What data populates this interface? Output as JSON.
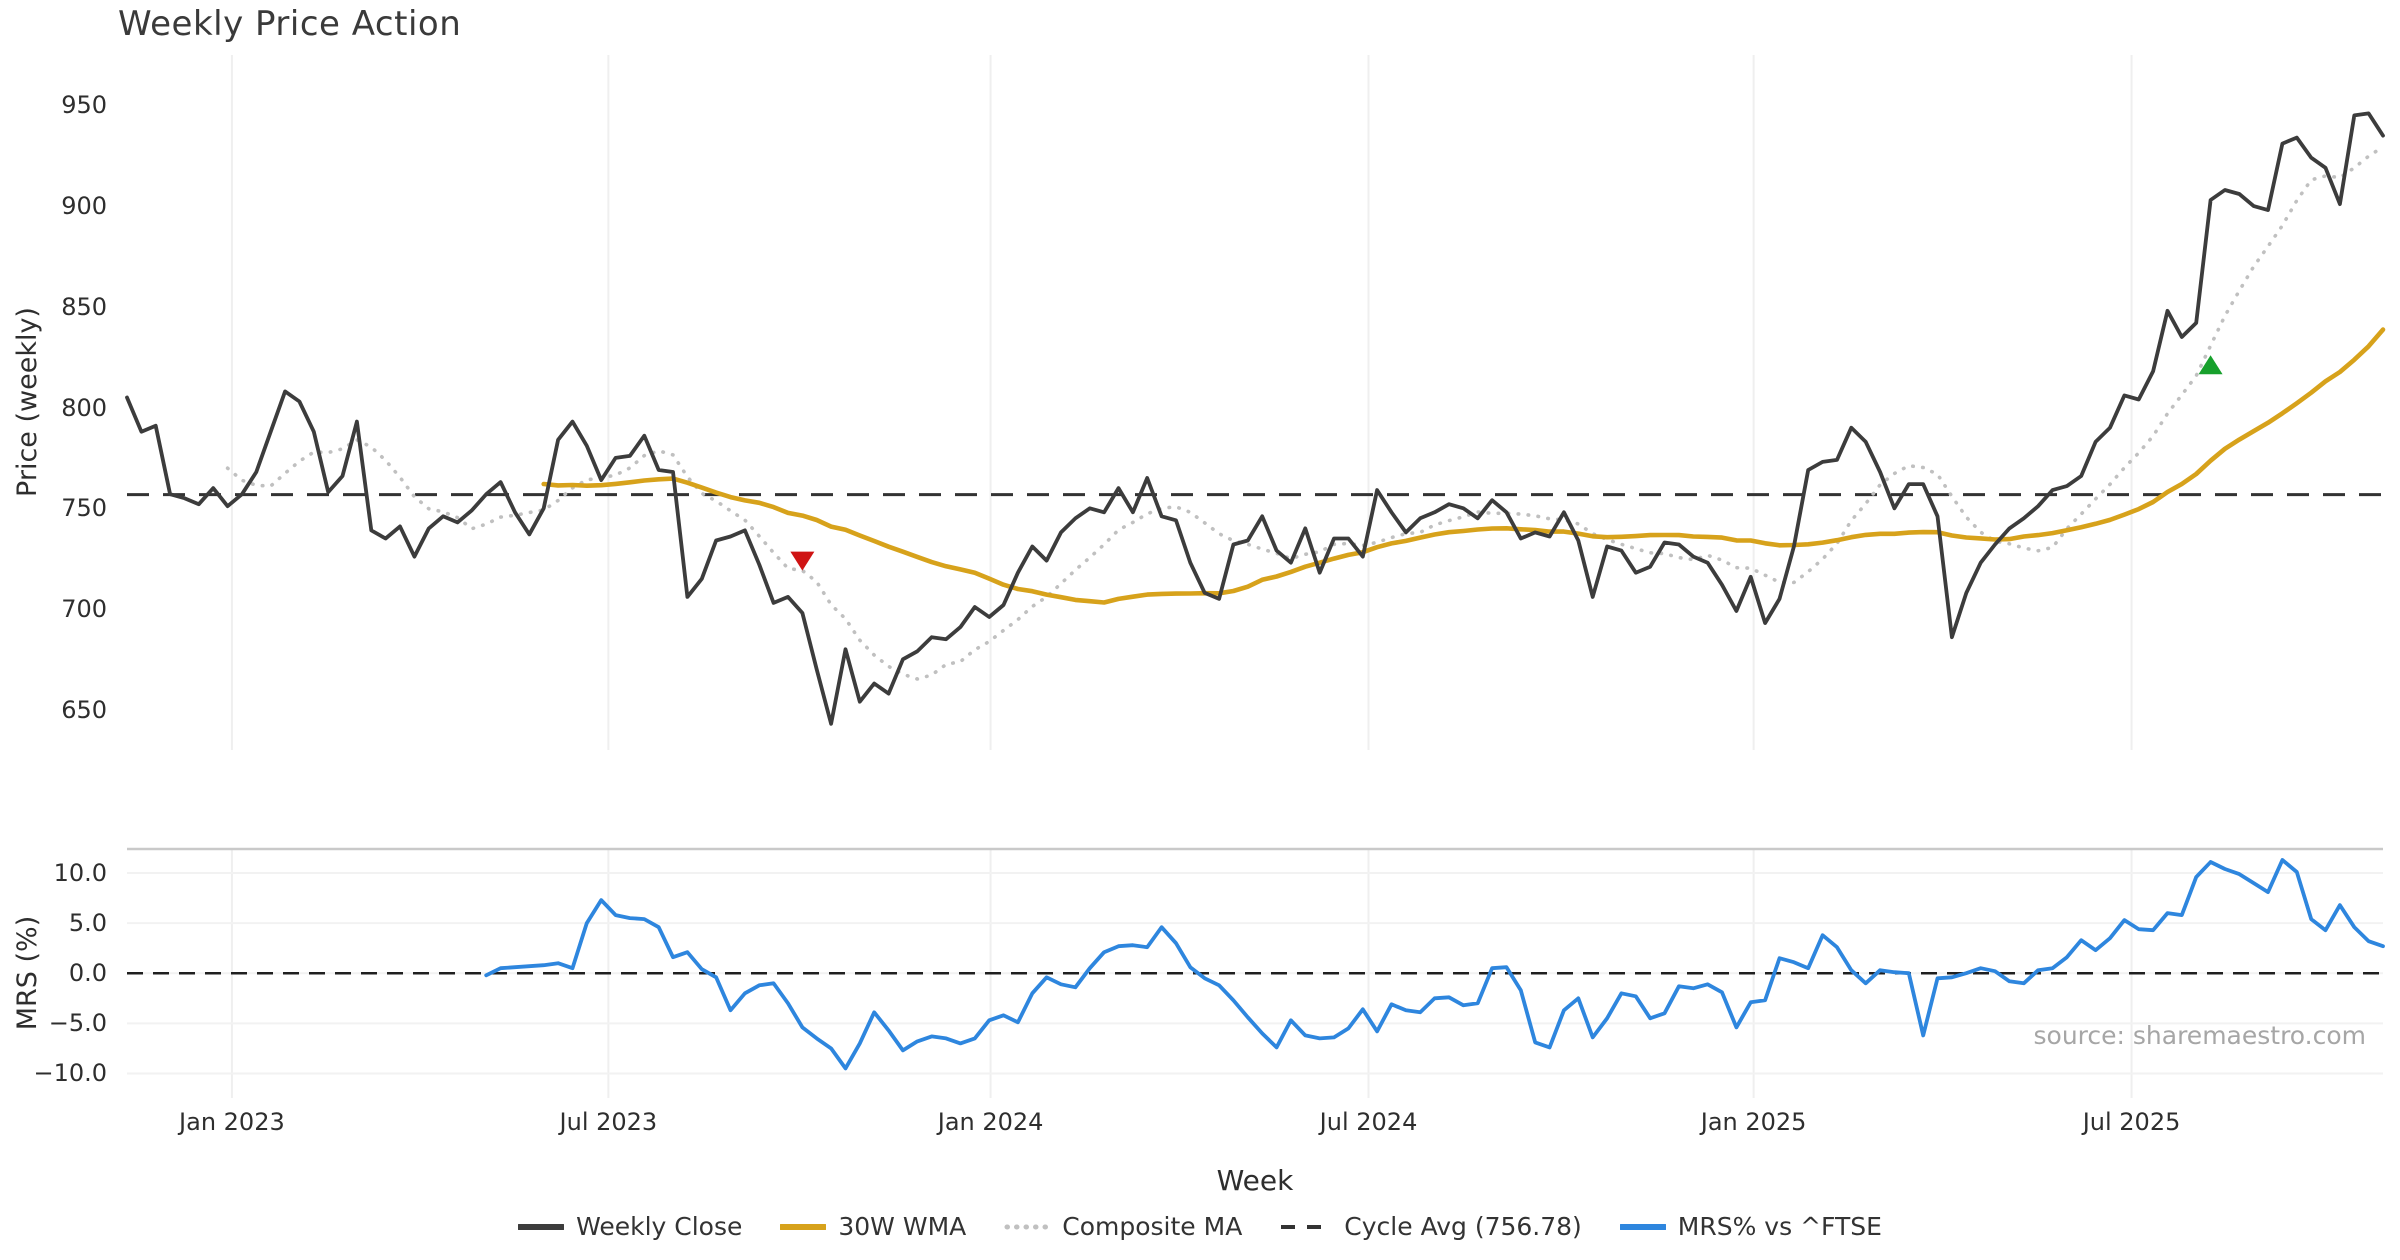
{
  "title": "Weekly Price Action",
  "source_text": "source: sharemaestro.com",
  "x_axis": {
    "label": "Week",
    "n_weeks": 157,
    "ticks": [
      {
        "label": "Jan 2023",
        "week": 7.3
      },
      {
        "label": "Jul 2023",
        "week": 33.5
      },
      {
        "label": "Jan 2024",
        "week": 60.1
      },
      {
        "label": "Jul 2024",
        "week": 86.4
      },
      {
        "label": "Jan 2025",
        "week": 113.2
      },
      {
        "label": "Jul 2025",
        "week": 139.5
      }
    ]
  },
  "legend": {
    "items": [
      {
        "label": "Weekly Close",
        "key": "close"
      },
      {
        "label": "30W WMA",
        "key": "wma"
      },
      {
        "label": "Composite MA",
        "key": "composite"
      },
      {
        "label": "Cycle Avg (756.78)",
        "key": "cycle"
      },
      {
        "label": "MRS% vs ^FTSE",
        "key": "mrs"
      }
    ]
  },
  "colors": {
    "close": "#3c3c3c",
    "wma": "#d7a21b",
    "composite": "#c0c0c0",
    "cycle": "#333333",
    "mrs": "#2e86de",
    "buy_marker": "#17a02c",
    "sell_marker": "#cf1414",
    "grid": "#efefef",
    "hgrid": "#f2f2f2",
    "spine": "#c9c9c9",
    "zero_line": "#1f1f1f",
    "tick_text": "#2e2e2e",
    "title_text": "#3a3a3a",
    "source_text": "#a6a6a6"
  },
  "chart_data": {
    "type": "line",
    "x_unit": "weekly index (Nov 2022 - Nov 2025)",
    "panels": [
      {
        "name": "price",
        "ylabel": "Price (weekly)",
        "ylim": [
          630,
          975
        ],
        "yticks": [
          950,
          900,
          850,
          800,
          750,
          700,
          650
        ],
        "cycle_avg": 756.78,
        "series": [
          {
            "name": "Weekly Close",
            "values": [
              805,
              788,
              791,
              757,
              755,
              752,
              760,
              751,
              757,
              768,
              788,
              808,
              803,
              788,
              758,
              766,
              793,
              739,
              735,
              741,
              726,
              740,
              746,
              743,
              749,
              757,
              763,
              748,
              737,
              750,
              784,
              793,
              781,
              764,
              775,
              776,
              786,
              769,
              768,
              706,
              715,
              734,
              736,
              739,
              722,
              703,
              706,
              698,
              670,
              643,
              680,
              654,
              663,
              658,
              675,
              679,
              686,
              685,
              691,
              701,
              696,
              702,
              718,
              731,
              724,
              738,
              745,
              750,
              748,
              760,
              748,
              765,
              746,
              744,
              723,
              708,
              705,
              732,
              734,
              746,
              729,
              723,
              740,
              718,
              735,
              735,
              726,
              759,
              748,
              738,
              745,
              748,
              752,
              750,
              745,
              754,
              748,
              735,
              738,
              736,
              748,
              734,
              706,
              731,
              729,
              718,
              721,
              733,
              732,
              726,
              723,
              712,
              699,
              716,
              693,
              705,
              731,
              769,
              773,
              774,
              790,
              783,
              768,
              750,
              762,
              762,
              746,
              686,
              708,
              723,
              732,
              740,
              745,
              751,
              759,
              761,
              766,
              783,
              790,
              806,
              804,
              818,
              848,
              835,
              842,
              903,
              908,
              906,
              900,
              898,
              931,
              934,
              924,
              919,
              901,
              945,
              946,
              935
            ]
          },
          {
            "name": "30W WMA",
            "derived": "30-week moving average of Weekly Close",
            "window": 30
          },
          {
            "name": "Composite MA",
            "derived": "8-week moving average of Weekly Close",
            "window": 8
          },
          {
            "name": "Cycle Avg",
            "value": 756.78
          }
        ],
        "markers": [
          {
            "type": "sell",
            "shape": "triangle-down",
            "week": 47,
            "price": 724
          },
          {
            "type": "buy",
            "shape": "triangle-up",
            "week": 145,
            "price": 821
          }
        ]
      },
      {
        "name": "mrs",
        "ylabel": "MRS (%)",
        "ylim": [
          -12.45,
          12.4
        ],
        "yticks": [
          {
            "label": "10.0",
            "value": 10
          },
          {
            "label": "5.0",
            "value": 5
          },
          {
            "label": "0.0",
            "value": 0
          },
          {
            "label": "−5.0",
            "value": -5
          },
          {
            "label": "−10.0",
            "value": -10
          }
        ],
        "zero_dashed_line": 0,
        "series": [
          {
            "name": "MRS% vs ^FTSE",
            "start_week": 25,
            "values": [
              -0.2,
              0.5,
              0.6,
              0.7,
              0.8,
              1.0,
              0.5,
              5.0,
              7.3,
              5.8,
              5.5,
              5.4,
              4.6,
              1.6,
              2.1,
              0.4,
              -0.4,
              -3.7,
              -2.0,
              -1.2,
              -1.0,
              -3.0,
              -5.4,
              -6.5,
              -7.5,
              -9.5,
              -7.0,
              -3.9,
              -5.7,
              -7.7,
              -6.8,
              -6.3,
              -6.5,
              -7.0,
              -6.5,
              -4.7,
              -4.2,
              -4.9,
              -2.0,
              -0.4,
              -1.1,
              -1.4,
              0.5,
              2.1,
              2.7,
              2.8,
              2.6,
              4.6,
              3.0,
              0.6,
              -0.5,
              -1.2,
              -2.7,
              -4.4,
              -6.0,
              -7.4,
              -4.7,
              -6.2,
              -6.5,
              -6.4,
              -5.5,
              -3.6,
              -5.8,
              -3.1,
              -3.7,
              -3.9,
              -2.5,
              -2.4,
              -3.2,
              -3.0,
              0.5,
              0.6,
              -1.7,
              -6.9,
              -7.4,
              -3.7,
              -2.5,
              -6.4,
              -4.5,
              -2.0,
              -2.3,
              -4.5,
              -4.0,
              -1.3,
              -1.5,
              -1.1,
              -1.9,
              -5.4,
              -2.9,
              -2.7,
              1.5,
              1.1,
              0.5,
              3.8,
              2.6,
              0.3,
              -1.0,
              0.3,
              0.1,
              0.0,
              -6.2,
              -0.5,
              -0.4,
              0.0,
              0.5,
              0.2,
              -0.8,
              -1.0,
              0.3,
              0.5,
              1.6,
              3.3,
              2.3,
              3.5,
              5.3,
              4.4,
              4.3,
              6.0,
              5.8,
              9.6,
              11.1,
              10.4,
              9.9,
              9.0,
              8.1,
              11.3,
              10.1,
              5.4,
              4.3,
              6.8,
              4.6,
              3.2,
              2.7
            ]
          }
        ]
      }
    ]
  }
}
